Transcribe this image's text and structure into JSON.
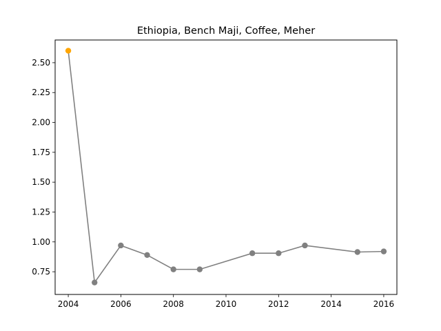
{
  "chart_data": {
    "type": "line",
    "title": "Ethiopia, Bench Maji, Coffee, Meher",
    "xlabel": "",
    "ylabel": "",
    "xlim": [
      2003.5,
      2016.5
    ],
    "ylim": [
      0.56,
      2.69
    ],
    "grid": false,
    "x_ticks": [
      2004,
      2006,
      2008,
      2010,
      2012,
      2014,
      2016
    ],
    "y_ticks": [
      0.75,
      1.0,
      1.25,
      1.5,
      1.75,
      2.0,
      2.25,
      2.5
    ],
    "series": [
      {
        "color": "#808080",
        "x": [
          2004,
          2005,
          2006,
          2007,
          2008,
          2009,
          2011,
          2012,
          2013,
          2015,
          2016
        ],
        "y": [
          2.6,
          0.66,
          0.97,
          0.89,
          0.77,
          0.77,
          0.905,
          0.905,
          0.97,
          0.915,
          0.92
        ],
        "point_colors": [
          "#ffa500",
          "#808080",
          "#808080",
          "#808080",
          "#808080",
          "#808080",
          "#808080",
          "#808080",
          "#808080",
          "#808080",
          "#808080"
        ]
      }
    ]
  }
}
